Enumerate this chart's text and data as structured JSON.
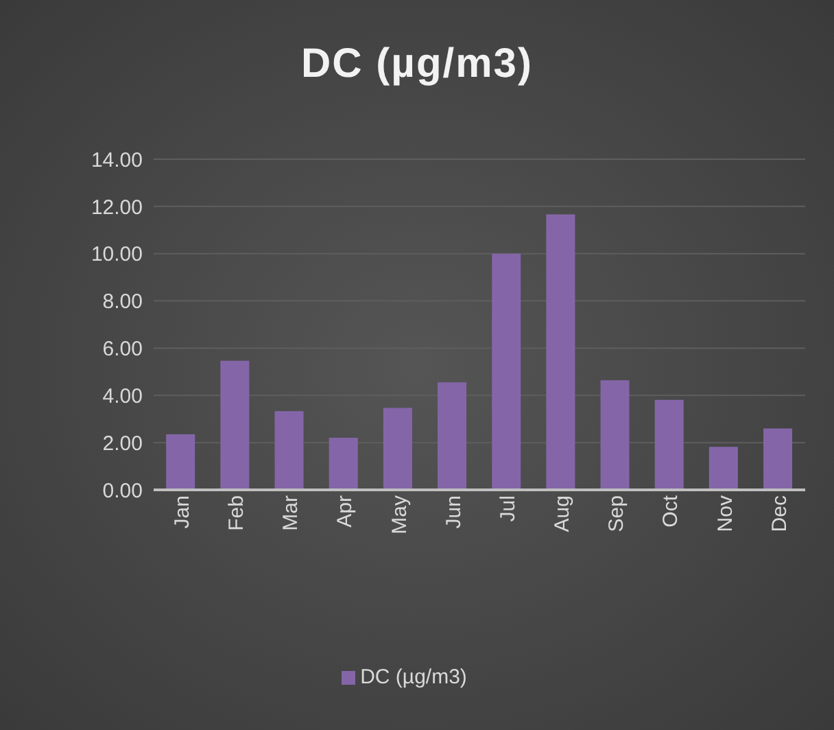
{
  "chart_data": {
    "type": "bar",
    "title": "DC (µg/m3)",
    "categories": [
      "Jan",
      "Feb",
      "Mar",
      "Apr",
      "May",
      "Jun",
      "Jul",
      "Aug",
      "Sep",
      "Oct",
      "Nov",
      "Dec"
    ],
    "series": [
      {
        "name": "DC (µg/m3)",
        "color": "#8466a8",
        "values": [
          2.35,
          5.47,
          3.33,
          2.21,
          3.47,
          4.55,
          10.0,
          11.66,
          4.64,
          3.81,
          1.82,
          2.6
        ]
      }
    ],
    "ylim": [
      0,
      14
    ],
    "yticks": [
      {
        "value": 0,
        "label": "0.00"
      },
      {
        "value": 2,
        "label": "2.00"
      },
      {
        "value": 4,
        "label": "4.00"
      },
      {
        "value": 6,
        "label": "6.00"
      },
      {
        "value": 8,
        "label": "8.00"
      },
      {
        "value": 10,
        "label": "10.00"
      },
      {
        "value": 12,
        "label": "12.00"
      },
      {
        "value": 14,
        "label": "14.00"
      }
    ],
    "grid": "y",
    "legend": "bottom"
  }
}
